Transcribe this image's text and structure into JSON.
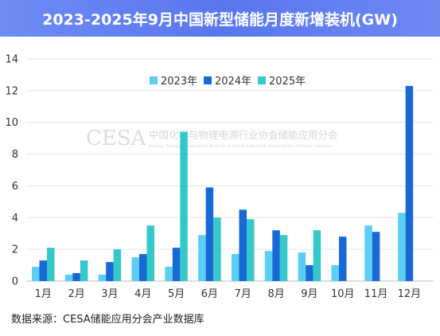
{
  "page": {
    "title": "2023-2025年9月中国新型储能月度新增装机(GW)",
    "source": "数据来源：CESA储能应用分会产业数据库",
    "watermark": {
      "logo": "CESA",
      "cn": "中国化学与物理电源行业协会储能应用分会",
      "en": "Energy Storage Application Branch of China Industrial Association of Power Sources"
    }
  },
  "colors": {
    "banner": "#6478f0",
    "series_2023": "#5ccdf3",
    "series_2024": "#1769d6",
    "series_2025": "#35c8c8",
    "grid": "#e6e6e6"
  },
  "chart_data": {
    "type": "bar",
    "title": "2023-2025年9月中国新型储能月度新增装机(GW)",
    "xlabel": "",
    "ylabel": "",
    "ylim": [
      0,
      14
    ],
    "yticks": [
      0,
      2,
      4,
      6,
      8,
      10,
      12,
      14
    ],
    "grid": true,
    "legend_position": "top-right",
    "categories": [
      "1月",
      "2月",
      "3月",
      "4月",
      "5月",
      "6月",
      "7月",
      "8月",
      "9月",
      "10月",
      "11月",
      "12月"
    ],
    "series": [
      {
        "name": "2023年",
        "values": [
          0.9,
          0.4,
          0.4,
          1.5,
          0.9,
          2.9,
          1.7,
          1.9,
          1.8,
          1.0,
          3.5,
          4.3
        ]
      },
      {
        "name": "2024年",
        "values": [
          1.3,
          0.5,
          1.2,
          1.7,
          2.1,
          5.9,
          4.5,
          3.2,
          1.0,
          2.8,
          3.1,
          12.3
        ]
      },
      {
        "name": "2025年",
        "values": [
          2.1,
          1.3,
          2.0,
          3.5,
          9.4,
          4.0,
          3.9,
          2.9,
          3.2,
          null,
          null,
          null
        ]
      }
    ]
  }
}
